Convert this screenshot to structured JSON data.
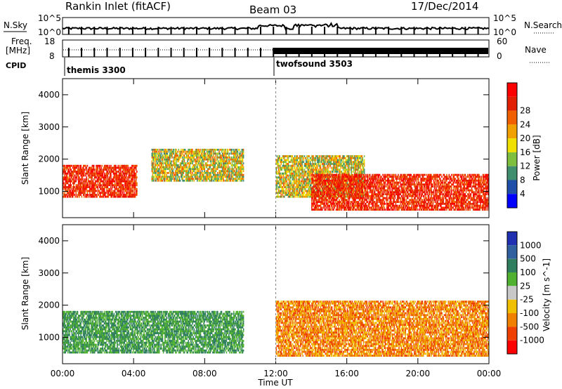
{
  "header": {
    "station": "Rankin Inlet (fitACF)",
    "beam": "Beam 03",
    "date": "17/Dec/2014"
  },
  "noise_panel": {
    "left_label": "N.Sky",
    "right_label": "N.Search",
    "ytick_top": "10^5",
    "ytick_bottom": "10^0"
  },
  "freq_panel": {
    "left_label_1": "Freq.",
    "left_label_2": "[MHz]",
    "cpid_label": "CPID",
    "right_label": "Nave",
    "ytick_left_top": "18",
    "ytick_left_bottom": "8",
    "ytick_right_top": "60",
    "ytick_right_bottom": "0",
    "cpid_1": "themis 3300",
    "cpid_2": "twofsound 3503"
  },
  "chart_data": [
    {
      "type": "heatmap",
      "title": "",
      "xlabel": "Time UT",
      "ylabel": "Slant Range [km]",
      "x_ticks": [
        "00:00",
        "04:00",
        "08:00",
        "12:00",
        "16:00",
        "20:00",
        "00:00"
      ],
      "y_ticks": [
        "1000",
        "2000",
        "3000",
        "4000"
      ],
      "xlim_hours": [
        0,
        24
      ],
      "ylim_km": [
        180,
        4500
      ],
      "colorbar": {
        "label": "Power [dB]",
        "ticks": [
          "4",
          "8",
          "12",
          "16",
          "20",
          "24",
          "28"
        ],
        "colors": [
          "#0000ff",
          "#1f4fa8",
          "#3f8f6f",
          "#7fbf3f",
          "#f0e000",
          "#f0a000",
          "#f06000",
          "#e02000",
          "#ff0000"
        ]
      },
      "regions": [
        {
          "t0": 0.0,
          "t1": 4.2,
          "r0": 800,
          "r1": 1800,
          "value": "high"
        },
        {
          "t0": 5.0,
          "t1": 10.2,
          "r0": 1300,
          "r1": 2300,
          "value": "mid"
        },
        {
          "t0": 12.0,
          "t1": 17.0,
          "r0": 800,
          "r1": 2100,
          "value": "mid"
        },
        {
          "t0": 14.0,
          "t1": 24.0,
          "r0": 400,
          "r1": 1500,
          "value": "high"
        }
      ]
    },
    {
      "type": "heatmap",
      "title": "",
      "xlabel": "Time UT",
      "ylabel": "Slant Range [km]",
      "x_ticks": [
        "00:00",
        "04:00",
        "08:00",
        "12:00",
        "16:00",
        "20:00",
        "00:00"
      ],
      "y_ticks": [
        "1000",
        "2000",
        "3000",
        "4000"
      ],
      "xlim_hours": [
        0,
        24
      ],
      "ylim_km": [
        180,
        4500
      ],
      "colorbar": {
        "label": "Velocity [m s^-1]",
        "ticks": [
          "1000",
          "500",
          "100",
          "25",
          "-25",
          "-100",
          "-500",
          "-1000"
        ],
        "colors": [
          "#2030b0",
          "#3060a0",
          "#2f7f5f",
          "#50b030",
          "#c8c8c8",
          "#f0c000",
          "#f08000",
          "#f04000",
          "#ff0000"
        ]
      },
      "regions": [
        {
          "t0": 0.0,
          "t1": 10.2,
          "r0": 500,
          "r1": 1800,
          "value": "positive-green"
        },
        {
          "t0": 12.0,
          "t1": 24.0,
          "r0": 400,
          "r1": 2100,
          "value": "negative-orange"
        }
      ]
    }
  ]
}
